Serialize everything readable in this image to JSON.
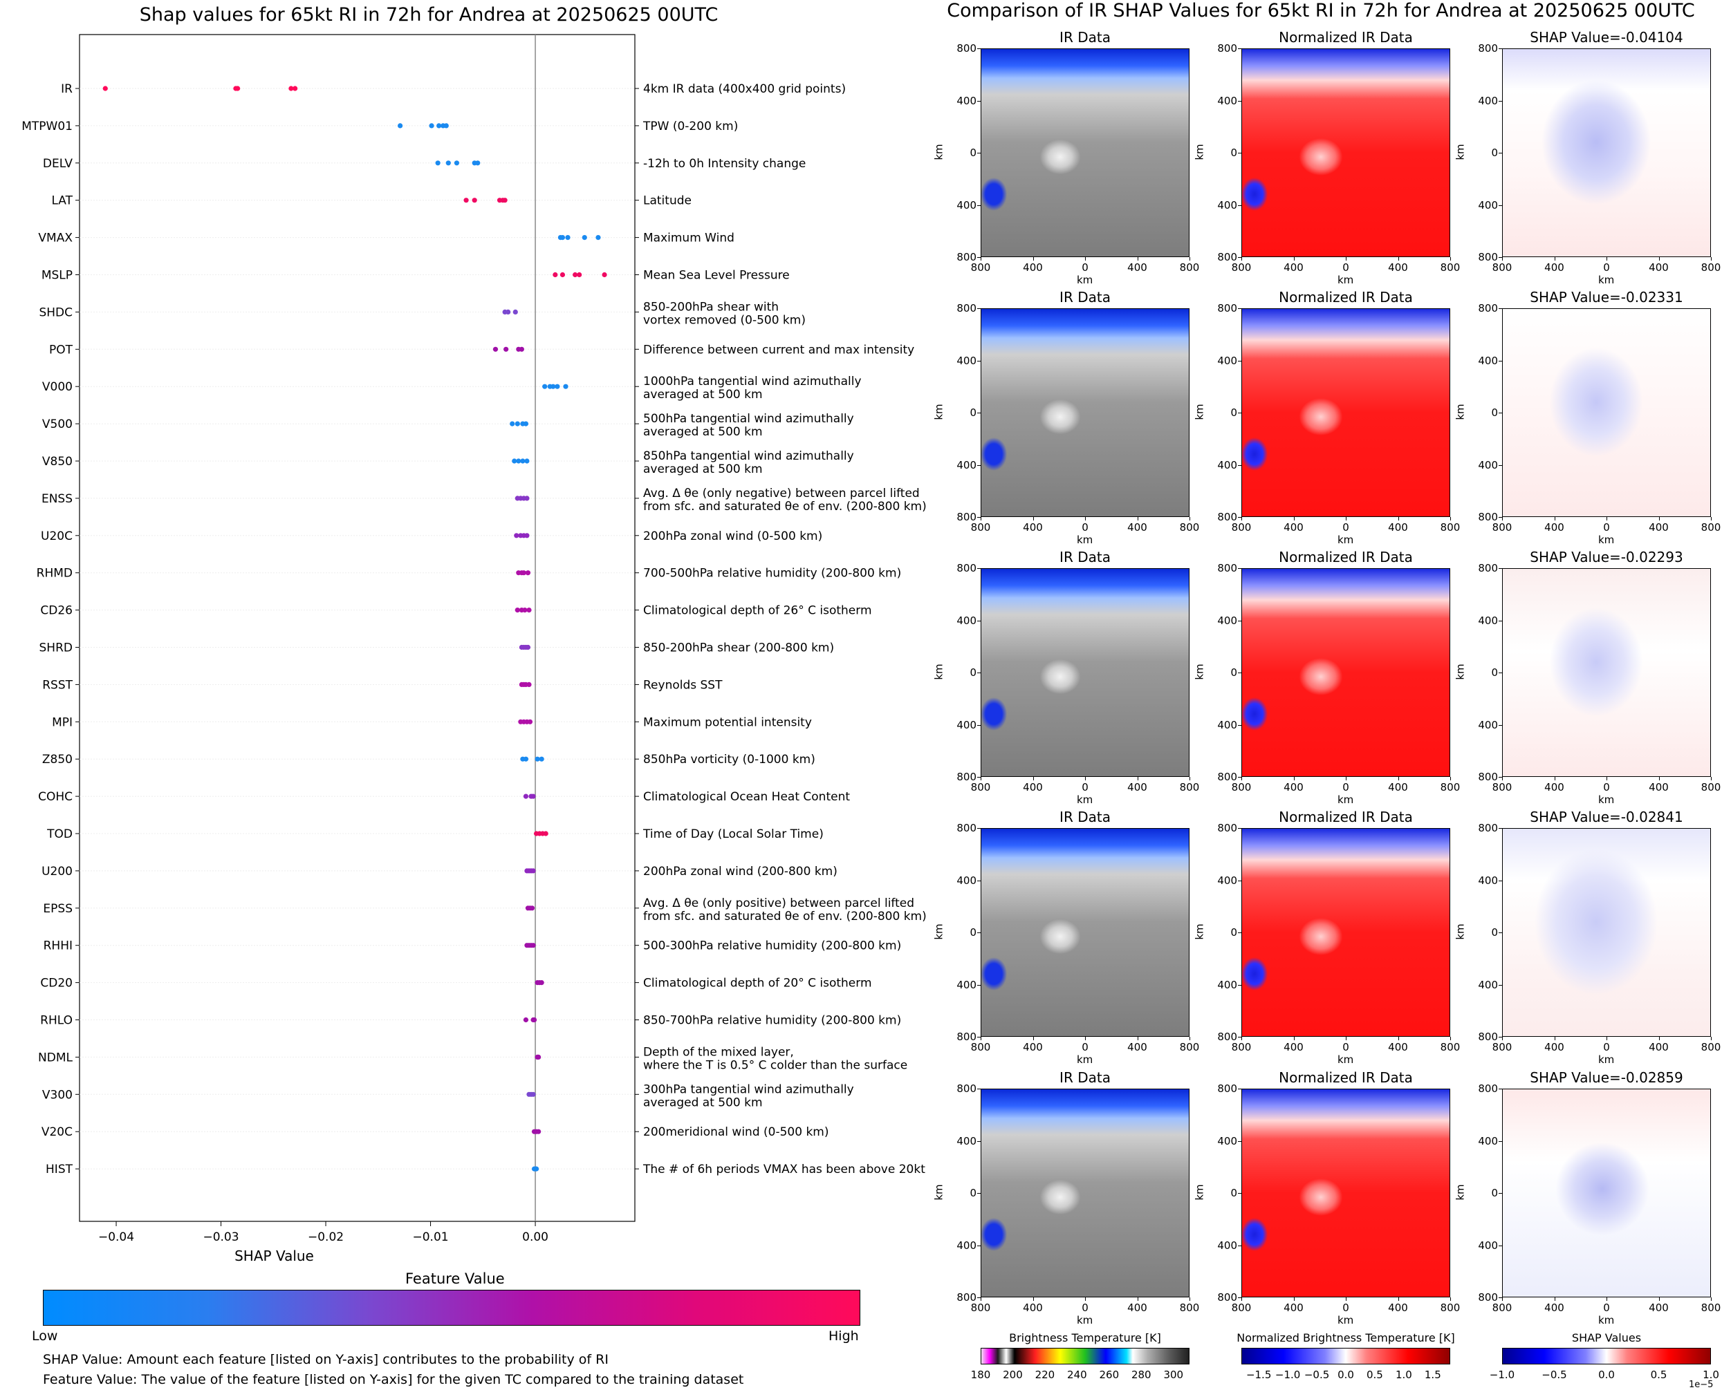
{
  "left_title": "Shap values for 65kt RI in 72h for Andrea at 20250625 00UTC",
  "right_title": "Comparison of IR SHAP Values for 65kt RI in 72h for Andrea at 20250625 00UTC",
  "chart_data": {
    "type": "scatter",
    "title": "Shap values for 65kt RI in 72h for Andrea at 20250625 00UTC",
    "xlabel": "SHAP Value",
    "xlim": [
      -0.0435,
      0.0095
    ],
    "xticks": [
      "−0.04",
      "−0.03",
      "−0.02",
      "−0.01",
      "0.00"
    ],
    "xtick_values": [
      -0.04,
      -0.03,
      -0.02,
      -0.01,
      0.0
    ],
    "features": [
      {
        "name": "IR",
        "description": "4km IR data (400x400 grid points)",
        "shap": [
          -0.04104,
          -0.02859,
          -0.02841,
          -0.02331,
          -0.02293
        ],
        "color": "#ff0a5a"
      },
      {
        "name": "MTPW01",
        "description": "TPW (0-200 km)",
        "shap": [
          -0.0129,
          -0.0099,
          -0.0092,
          -0.0088,
          -0.0085
        ],
        "color": "#1a8af0"
      },
      {
        "name": "DELV",
        "description": "-12h to 0h Intensity change",
        "shap": [
          -0.0093,
          -0.0083,
          -0.0075,
          -0.0058,
          -0.0055
        ],
        "color": "#1a8af0"
      },
      {
        "name": "LAT",
        "description": "Latitude",
        "shap": [
          -0.0066,
          -0.0058,
          -0.0034,
          -0.0031,
          -0.0029
        ],
        "color": "#f00a62"
      },
      {
        "name": "VMAX",
        "description": "Maximum Wind",
        "shap": [
          0.0024,
          0.0031,
          0.0047,
          0.006,
          0.0026
        ],
        "color": "#1a8af0"
      },
      {
        "name": "MSLP",
        "description": "Mean Sea Level Pressure",
        "shap": [
          0.0019,
          0.0026,
          0.0038,
          0.0042,
          0.0066
        ],
        "color": "#f00a62"
      },
      {
        "name": "SHDC",
        "description": "850-200hPa shear with\nvortex removed (0-500 km)",
        "shap": [
          -0.0029,
          -0.0026,
          -0.0019
        ],
        "color": "#7a48d0"
      },
      {
        "name": "POT",
        "description": "Difference between current and max intensity",
        "shap": [
          -0.0038,
          -0.0028,
          -0.0016,
          -0.0013
        ],
        "color": "#a010a8"
      },
      {
        "name": "V000",
        "description": "1000hPa tangential wind azimuthally\naveraged at 500 km",
        "shap": [
          0.0009,
          0.0014,
          0.0017,
          0.0021,
          0.0029
        ],
        "color": "#1a8af0"
      },
      {
        "name": "V500",
        "description": "500hPa tangential wind azimuthally\naveraged at 500 km",
        "shap": [
          -0.0022,
          -0.0017,
          -0.0012,
          -0.0009
        ],
        "color": "#1a8af0"
      },
      {
        "name": "V850",
        "description": "850hPa tangential wind azimuthally\naveraged at 500 km",
        "shap": [
          -0.002,
          -0.0016,
          -0.0012,
          -0.0008
        ],
        "color": "#1a8af0"
      },
      {
        "name": "ENSS",
        "description": "Avg. Δ θe (only negative) between parcel lifted\nfrom sfc. and saturated θe of env. (200-800 km)",
        "shap": [
          -0.0017,
          -0.0014,
          -0.0011,
          -0.0008
        ],
        "color": "#8838c8"
      },
      {
        "name": "U20C",
        "description": "200hPa zonal wind (0-500 km)",
        "shap": [
          -0.0018,
          -0.0014,
          -0.0011,
          -0.0008
        ],
        "color": "#9028c0"
      },
      {
        "name": "RHMD",
        "description": "700-500hPa relative humidity (200-800 km)",
        "shap": [
          -0.0016,
          -0.0013,
          -0.0011,
          -0.0007
        ],
        "color": "#b010a8"
      },
      {
        "name": "CD26",
        "description": "Climatological depth of 26° C isotherm",
        "shap": [
          -0.0017,
          -0.0013,
          -0.001,
          -0.0006
        ],
        "color": "#b010a8"
      },
      {
        "name": "SHRD",
        "description": "850-200hPa shear (200-800 km)",
        "shap": [
          -0.0013,
          -0.0011,
          -0.0009,
          -0.0007
        ],
        "color": "#8838c8"
      },
      {
        "name": "RSST",
        "description": "Reynolds SST",
        "shap": [
          -0.0013,
          -0.0011,
          -0.0009,
          -0.0006
        ],
        "color": "#b010a8"
      },
      {
        "name": "MPI",
        "description": "Maximum potential intensity",
        "shap": [
          -0.0014,
          -0.0011,
          -0.0008,
          -0.0005
        ],
        "color": "#b010a8"
      },
      {
        "name": "Z850",
        "description": "850hPa vorticity (0-1000 km)",
        "shap": [
          -0.0012,
          -0.0009,
          0.0002,
          0.0006
        ],
        "color": "#1a8af0"
      },
      {
        "name": "COHC",
        "description": "Climatological Ocean Heat Content",
        "shap": [
          -0.0009,
          -0.0004,
          -0.0002
        ],
        "color": "#9028c0"
      },
      {
        "name": "TOD",
        "description": "Time of Day (Local Solar Time)",
        "shap": [
          0.0001,
          0.0004,
          0.0007,
          0.001
        ],
        "color": "#f00a62"
      },
      {
        "name": "U200",
        "description": "200hPa zonal wind (200-800 km)",
        "shap": [
          -0.0008,
          -0.0006,
          -0.0004,
          -0.0002
        ],
        "color": "#9028c0"
      },
      {
        "name": "EPSS",
        "description": "Avg. Δ θe (only positive) between parcel lifted\nfrom sfc. and saturated θe of env. (200-800 km)",
        "shap": [
          -0.0007,
          -0.0005,
          -0.0003
        ],
        "color": "#a010a8"
      },
      {
        "name": "RHHI",
        "description": "500-300hPa relative humidity (200-800 km)",
        "shap": [
          -0.0008,
          -0.0006,
          -0.0004,
          -0.0002
        ],
        "color": "#a010a8"
      },
      {
        "name": "CD20",
        "description": "Climatological depth of 20° C isotherm",
        "shap": [
          0.0002,
          0.0004,
          0.0006
        ],
        "color": "#a010a8"
      },
      {
        "name": "RHLO",
        "description": "850-700hPa relative humidity (200-800 km)",
        "shap": [
          -0.0009,
          -0.0002,
          -0.0001
        ],
        "color": "#a010a8"
      },
      {
        "name": "NDML",
        "description": "Depth of the mixed layer,\nwhere the T is 0.5° C colder than the surface",
        "shap": [
          0.0002,
          0.0003
        ],
        "color": "#a010a8"
      },
      {
        "name": "V300",
        "description": "300hPa tangential wind azimuthally\naveraged at 500 km",
        "shap": [
          -0.0006,
          -0.0004,
          -0.0002
        ],
        "color": "#7a48d0"
      },
      {
        "name": "V20C",
        "description": "200meridional wind (0-500 km)",
        "shap": [
          -0.0001,
          0.0001,
          0.0003
        ],
        "color": "#a010a8"
      },
      {
        "name": "HIST",
        "description": "The # of 6h periods VMAX has been above 20kt",
        "shap": [
          -0.0001,
          0.0,
          0.0001
        ],
        "color": "#1a8af0"
      }
    ]
  },
  "colorbar": {
    "title": "Feature Value",
    "low_label": "Low",
    "high_label": "High",
    "colors": [
      "#008cff",
      "#2a7ef0",
      "#7a48d0",
      "#b010a8",
      "#e0087a",
      "#ff0a5a"
    ]
  },
  "footnotes": [
    "SHAP Value: Amount each feature [listed on Y-axis] contributes to the probability of RI",
    "Feature Value: The value of the feature [listed on Y-axis] for the given TC compared to the training dataset"
  ],
  "ir_panels": {
    "column_titles": [
      "IR Data",
      "Normalized IR Data"
    ],
    "shap_titles": [
      "SHAP Value=-0.04104",
      "SHAP Value=-0.02331",
      "SHAP Value=-0.02293",
      "SHAP Value=-0.02841",
      "SHAP Value=-0.02859"
    ],
    "tick_labels": [
      "800",
      "400",
      "0",
      "400",
      "800"
    ],
    "axis_unit": "km"
  },
  "colorbars_bottom": [
    {
      "title": "Brightness Temperature [K]",
      "ticks": [
        "180",
        "200",
        "220",
        "240",
        "260",
        "280",
        "300"
      ]
    },
    {
      "title": "Normalized Brightness Temperature [K]",
      "ticks": [
        "−1.5",
        "−1.0",
        "−0.5",
        "0.0",
        "0.5",
        "1.0",
        "1.5"
      ]
    },
    {
      "title": "SHAP Values",
      "ticks": [
        "−1.0",
        "−0.5",
        "0.0",
        "0.5",
        "1.0"
      ],
      "exponent": "1e−5"
    }
  ]
}
